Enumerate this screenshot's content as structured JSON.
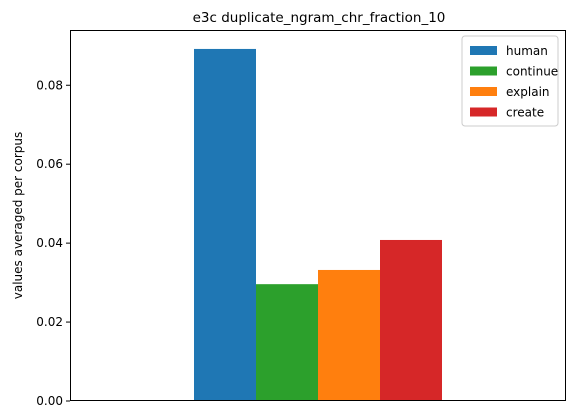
{
  "chart_data": {
    "type": "bar",
    "title": "e3c duplicate_ngram_chr_fraction_10",
    "xlabel": "",
    "ylabel": "values averaged per corpus",
    "ylim": [
      0,
      0.094
    ],
    "yticks": [
      0.0,
      0.02,
      0.04,
      0.06,
      0.08
    ],
    "ytick_labels": [
      "0.00",
      "0.02",
      "0.04",
      "0.06",
      "0.08"
    ],
    "categories": [
      ""
    ],
    "series": [
      {
        "name": "human",
        "values": [
          0.0892
        ],
        "color": "#1f77b4"
      },
      {
        "name": "continue",
        "values": [
          0.0296
        ],
        "color": "#2ca02c"
      },
      {
        "name": "explain",
        "values": [
          0.0332
        ],
        "color": "#ff7f0e"
      },
      {
        "name": "create",
        "values": [
          0.0408
        ],
        "color": "#d62728"
      }
    ],
    "legend": "top-right",
    "grid": false
  }
}
